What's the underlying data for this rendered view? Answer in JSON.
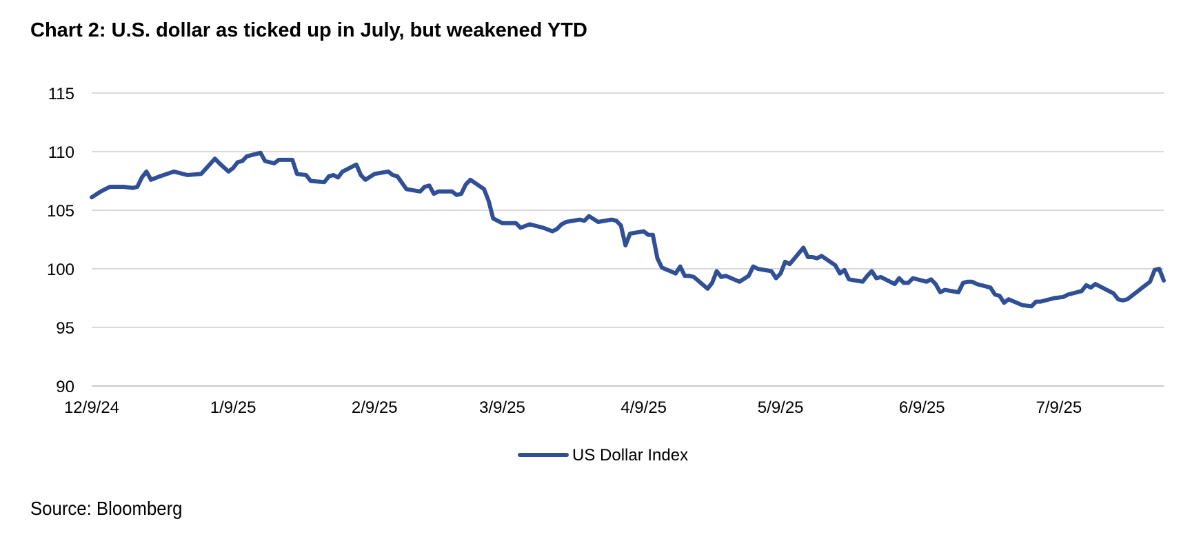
{
  "title": "Chart 2: U.S. dollar as ticked up in July, but weakened YTD",
  "source": "Source: Bloomberg",
  "chart_data": {
    "type": "line",
    "title": "Chart 2: U.S. dollar as ticked up in July, but weakened YTD",
    "xlabel": "",
    "ylabel": "",
    "ylim": [
      90,
      115
    ],
    "yticks": [
      90,
      95,
      100,
      105,
      110,
      115
    ],
    "xlim": [
      "2024-12-09",
      "2025-08-01"
    ],
    "xticks": [
      {
        "label": "12/9/24",
        "date": "2024-12-09"
      },
      {
        "label": "1/9/25",
        "date": "2025-01-09"
      },
      {
        "label": "2/9/25",
        "date": "2025-02-09"
      },
      {
        "label": "3/9/25",
        "date": "2025-03-09"
      },
      {
        "label": "4/9/25",
        "date": "2025-04-09"
      },
      {
        "label": "5/9/25",
        "date": "2025-05-09"
      },
      {
        "label": "6/9/25",
        "date": "2025-06-09"
      },
      {
        "label": "7/9/25",
        "date": "2025-07-09"
      }
    ],
    "grid": "horizontal",
    "legend_position": "bottom",
    "color": "#2f4f96",
    "series": [
      {
        "name": "US Dollar Index",
        "points": [
          [
            "2024-12-09",
            106.1
          ],
          [
            "2024-12-11",
            106.6
          ],
          [
            "2024-12-13",
            107.0
          ],
          [
            "2024-12-16",
            107.0
          ],
          [
            "2024-12-18",
            106.9
          ],
          [
            "2024-12-19",
            107.0
          ],
          [
            "2024-12-20",
            107.8
          ],
          [
            "2024-12-21",
            108.3
          ],
          [
            "2024-12-22",
            107.6
          ],
          [
            "2024-12-24",
            107.9
          ],
          [
            "2024-12-27",
            108.3
          ],
          [
            "2024-12-30",
            108.0
          ],
          [
            "2025-01-02",
            108.1
          ],
          [
            "2025-01-05",
            109.4
          ],
          [
            "2025-01-06",
            109.0
          ],
          [
            "2025-01-08",
            108.3
          ],
          [
            "2025-01-09",
            108.6
          ],
          [
            "2025-01-10",
            109.1
          ],
          [
            "2025-01-11",
            109.2
          ],
          [
            "2025-01-12",
            109.6
          ],
          [
            "2025-01-15",
            109.9
          ],
          [
            "2025-01-16",
            109.2
          ],
          [
            "2025-01-18",
            109.0
          ],
          [
            "2025-01-19",
            109.3
          ],
          [
            "2025-01-22",
            109.3
          ],
          [
            "2025-01-23",
            108.1
          ],
          [
            "2025-01-25",
            108.0
          ],
          [
            "2025-01-26",
            107.5
          ],
          [
            "2025-01-29",
            107.4
          ],
          [
            "2025-01-30",
            107.9
          ],
          [
            "2025-01-31",
            108.0
          ],
          [
            "2025-02-01",
            107.8
          ],
          [
            "2025-02-02",
            108.3
          ],
          [
            "2025-02-05",
            108.9
          ],
          [
            "2025-02-06",
            108.0
          ],
          [
            "2025-02-07",
            107.6
          ],
          [
            "2025-02-09",
            108.1
          ],
          [
            "2025-02-12",
            108.3
          ],
          [
            "2025-02-13",
            108.0
          ],
          [
            "2025-02-14",
            107.9
          ],
          [
            "2025-02-16",
            106.8
          ],
          [
            "2025-02-19",
            106.6
          ],
          [
            "2025-02-20",
            107.0
          ],
          [
            "2025-02-21",
            107.1
          ],
          [
            "2025-02-22",
            106.4
          ],
          [
            "2025-02-23",
            106.6
          ],
          [
            "2025-02-26",
            106.6
          ],
          [
            "2025-02-27",
            106.3
          ],
          [
            "2025-02-28",
            106.4
          ],
          [
            "2025-03-01",
            107.2
          ],
          [
            "2025-03-02",
            107.6
          ],
          [
            "2025-03-05",
            106.8
          ],
          [
            "2025-03-06",
            105.8
          ],
          [
            "2025-03-07",
            104.3
          ],
          [
            "2025-03-09",
            103.9
          ],
          [
            "2025-03-12",
            103.9
          ],
          [
            "2025-03-13",
            103.5
          ],
          [
            "2025-03-15",
            103.8
          ],
          [
            "2025-03-18",
            103.5
          ],
          [
            "2025-03-20",
            103.2
          ],
          [
            "2025-03-21",
            103.4
          ],
          [
            "2025-03-22",
            103.8
          ],
          [
            "2025-03-23",
            104.0
          ],
          [
            "2025-03-26",
            104.2
          ],
          [
            "2025-03-27",
            104.1
          ],
          [
            "2025-03-28",
            104.5
          ],
          [
            "2025-03-30",
            104.0
          ],
          [
            "2025-04-02",
            104.2
          ],
          [
            "2025-04-03",
            104.1
          ],
          [
            "2025-04-04",
            103.7
          ],
          [
            "2025-04-05",
            102.0
          ],
          [
            "2025-04-06",
            103.0
          ],
          [
            "2025-04-09",
            103.2
          ],
          [
            "2025-04-10",
            102.9
          ],
          [
            "2025-04-11",
            102.9
          ],
          [
            "2025-04-12",
            100.9
          ],
          [
            "2025-04-13",
            100.1
          ],
          [
            "2025-04-16",
            99.6
          ],
          [
            "2025-04-17",
            100.2
          ],
          [
            "2025-04-18",
            99.4
          ],
          [
            "2025-04-19",
            99.4
          ],
          [
            "2025-04-20",
            99.3
          ],
          [
            "2025-04-23",
            98.3
          ],
          [
            "2025-04-24",
            98.8
          ],
          [
            "2025-04-25",
            99.8
          ],
          [
            "2025-04-26",
            99.3
          ],
          [
            "2025-04-27",
            99.4
          ],
          [
            "2025-04-30",
            98.9
          ],
          [
            "2025-05-02",
            99.4
          ],
          [
            "2025-05-03",
            100.2
          ],
          [
            "2025-05-04",
            100.0
          ],
          [
            "2025-05-07",
            99.8
          ],
          [
            "2025-05-08",
            99.2
          ],
          [
            "2025-05-09",
            99.6
          ],
          [
            "2025-05-10",
            100.6
          ],
          [
            "2025-05-11",
            100.4
          ],
          [
            "2025-05-14",
            101.8
          ],
          [
            "2025-05-15",
            101.0
          ],
          [
            "2025-05-16",
            101.0
          ],
          [
            "2025-05-17",
            100.9
          ],
          [
            "2025-05-18",
            101.1
          ],
          [
            "2025-05-21",
            100.3
          ],
          [
            "2025-05-22",
            99.6
          ],
          [
            "2025-05-23",
            99.9
          ],
          [
            "2025-05-24",
            99.1
          ],
          [
            "2025-05-27",
            98.9
          ],
          [
            "2025-05-28",
            99.4
          ],
          [
            "2025-05-29",
            99.8
          ],
          [
            "2025-05-30",
            99.2
          ],
          [
            "2025-05-31",
            99.3
          ],
          [
            "2025-06-03",
            98.7
          ],
          [
            "2025-06-04",
            99.2
          ],
          [
            "2025-06-05",
            98.8
          ],
          [
            "2025-06-06",
            98.8
          ],
          [
            "2025-06-07",
            99.2
          ],
          [
            "2025-06-10",
            98.9
          ],
          [
            "2025-06-11",
            99.1
          ],
          [
            "2025-06-12",
            98.7
          ],
          [
            "2025-06-13",
            98.0
          ],
          [
            "2025-06-14",
            98.2
          ],
          [
            "2025-06-17",
            98.0
          ],
          [
            "2025-06-18",
            98.8
          ],
          [
            "2025-06-19",
            98.9
          ],
          [
            "2025-06-20",
            98.9
          ],
          [
            "2025-06-21",
            98.7
          ],
          [
            "2025-06-24",
            98.4
          ],
          [
            "2025-06-25",
            97.8
          ],
          [
            "2025-06-26",
            97.7
          ],
          [
            "2025-06-27",
            97.1
          ],
          [
            "2025-06-28",
            97.4
          ],
          [
            "2025-07-01",
            96.9
          ],
          [
            "2025-07-03",
            96.8
          ],
          [
            "2025-07-04",
            97.2
          ],
          [
            "2025-07-05",
            97.2
          ],
          [
            "2025-07-08",
            97.5
          ],
          [
            "2025-07-10",
            97.6
          ],
          [
            "2025-07-11",
            97.8
          ],
          [
            "2025-07-14",
            98.1
          ],
          [
            "2025-07-15",
            98.6
          ],
          [
            "2025-07-16",
            98.4
          ],
          [
            "2025-07-17",
            98.7
          ],
          [
            "2025-07-21",
            97.9
          ],
          [
            "2025-07-22",
            97.4
          ],
          [
            "2025-07-23",
            97.3
          ],
          [
            "2025-07-24",
            97.4
          ],
          [
            "2025-07-28",
            98.6
          ],
          [
            "2025-07-29",
            98.9
          ],
          [
            "2025-07-30",
            99.9
          ],
          [
            "2025-07-31",
            100.0
          ],
          [
            "2025-08-01",
            99.0
          ]
        ]
      }
    ]
  }
}
